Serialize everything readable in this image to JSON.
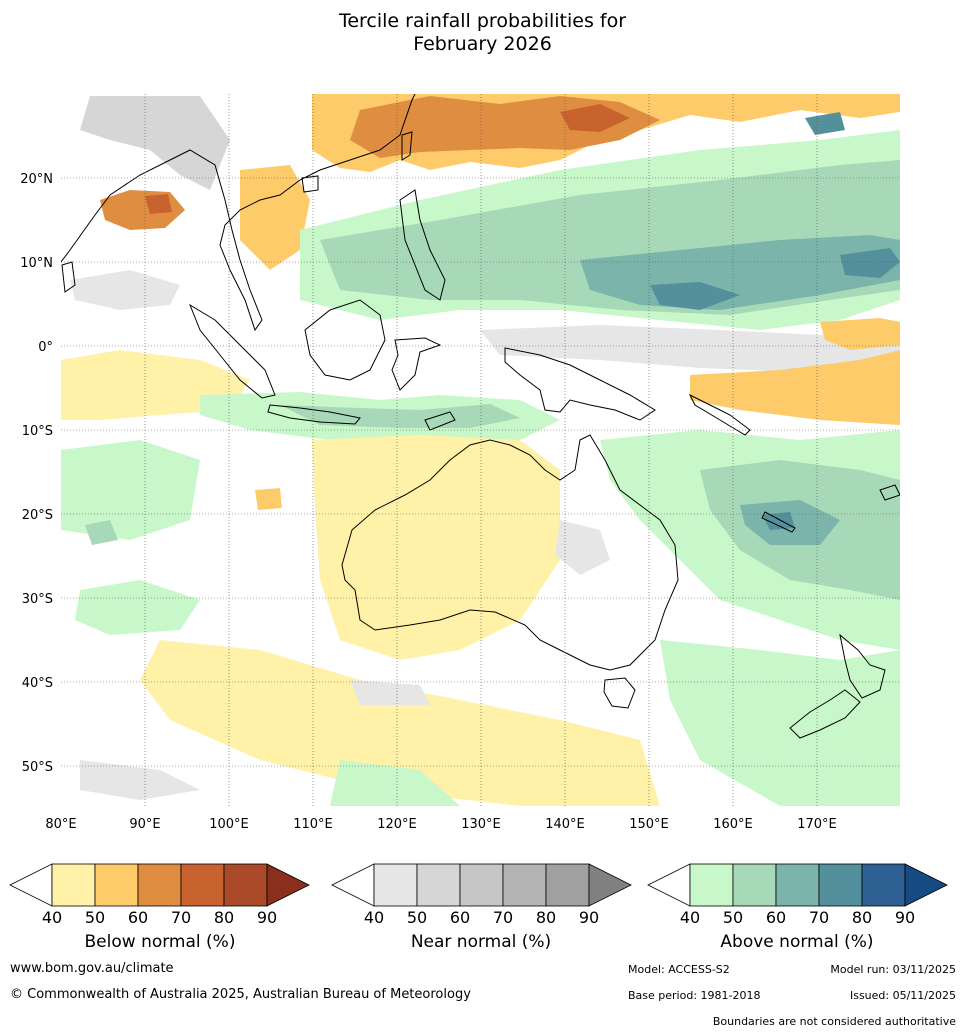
{
  "title_line1": "Tercile rainfall probabilities for",
  "title_line2": "February 2026",
  "map": {
    "lon_ticks": [
      "80°E",
      "90°E",
      "100°E",
      "110°E",
      "120°E",
      "130°E",
      "140°E",
      "150°E",
      "160°E",
      "170°E"
    ],
    "lat_ticks": [
      "20°N",
      "10°N",
      "0°",
      "10°S",
      "20°S",
      "30°S",
      "40°S",
      "50°S"
    ],
    "lon_range": [
      80,
      180
    ],
    "lat_range": [
      -55,
      30
    ]
  },
  "legends": [
    {
      "title": "Below normal (%)",
      "ticks": [
        "40",
        "50",
        "60",
        "70",
        "80",
        "90"
      ],
      "colors": [
        "#fff1a8",
        "#fecb6b",
        "#df8d41",
        "#c8622e",
        "#ab4a28",
        "#8b2f1d"
      ]
    },
    {
      "title": "Near normal (%)",
      "ticks": [
        "40",
        "50",
        "60",
        "70",
        "80",
        "90"
      ],
      "colors": [
        "#e6e6e6",
        "#d6d6d6",
        "#c6c6c6",
        "#b4b4b4",
        "#a0a0a0",
        "#808080"
      ]
    },
    {
      "title": "Above normal (%)",
      "ticks": [
        "40",
        "50",
        "60",
        "70",
        "80",
        "90"
      ],
      "colors": [
        "#c8f8c9",
        "#a7d9b8",
        "#7ab4aa",
        "#548f9c",
        "#2e6094",
        "#154a83"
      ]
    }
  ],
  "footer": {
    "website": "www.bom.gov.au/climate",
    "copyright": "© Commonwealth of Australia 2025, Australian Bureau of Meteorology",
    "model": "Model: ACCESS-S2",
    "model_run": "Model run: 03/11/2025",
    "base_period": "Base period: 1981-2018",
    "issued": "Issued: 05/11/2025",
    "disclaimer": "Boundaries are not considered authoritative"
  }
}
